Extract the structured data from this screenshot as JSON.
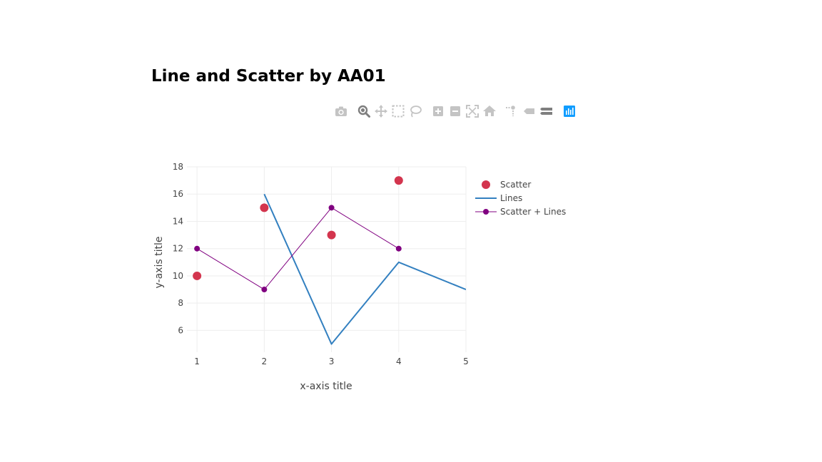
{
  "page": {
    "title": "Line and Scatter by AA01"
  },
  "modebar": {
    "buttons": [
      {
        "name": "download-plot-button",
        "icon": "camera-icon"
      },
      {
        "name": "zoom-button",
        "icon": "zoom-icon"
      },
      {
        "name": "pan-button",
        "icon": "pan-icon"
      },
      {
        "name": "box-select-button",
        "icon": "box-select-icon"
      },
      {
        "name": "lasso-select-button",
        "icon": "lasso-icon"
      },
      {
        "name": "zoom-in-button",
        "icon": "zoom-in-icon"
      },
      {
        "name": "zoom-out-button",
        "icon": "zoom-out-icon"
      },
      {
        "name": "autoscale-button",
        "icon": "autoscale-icon"
      },
      {
        "name": "reset-axes-button",
        "icon": "home-icon"
      },
      {
        "name": "toggle-spike-lines-button",
        "icon": "spike-lines-icon"
      },
      {
        "name": "hover-closest-button",
        "icon": "hover-closest-icon"
      },
      {
        "name": "hover-compare-button",
        "icon": "hover-compare-icon"
      },
      {
        "name": "plotly-logo-button",
        "icon": "plotly-logo-icon"
      }
    ],
    "colors": {
      "inactive": "#c4c4c4",
      "active": "#7f7f7f",
      "logo": "#119dff"
    }
  },
  "chart_data": {
    "type": "line",
    "title": "Line and Scatter by AA01",
    "xlabel": "x-axis title",
    "ylabel": "y-axis title",
    "xlim": [
      0.85,
      5
    ],
    "ylim": [
      4.4,
      18
    ],
    "xticks": [
      1,
      2,
      3,
      4,
      5
    ],
    "yticks": [
      6,
      8,
      10,
      12,
      14,
      16,
      18
    ],
    "grid": true,
    "legend_position": "right",
    "series": [
      {
        "name": "Scatter",
        "mode": "markers",
        "color": "#d3354e",
        "x": [
          1,
          2,
          3,
          4
        ],
        "y": [
          10,
          15,
          13,
          17
        ]
      },
      {
        "name": "Lines",
        "mode": "lines",
        "color": "#3380c0",
        "x": [
          2,
          3,
          4,
          5
        ],
        "y": [
          16,
          5,
          11,
          9
        ]
      },
      {
        "name": "Scatter + Lines",
        "mode": "lines+markers",
        "color": "#800080",
        "x": [
          1,
          2,
          3,
          4
        ],
        "y": [
          12,
          9,
          15,
          12
        ]
      }
    ]
  }
}
